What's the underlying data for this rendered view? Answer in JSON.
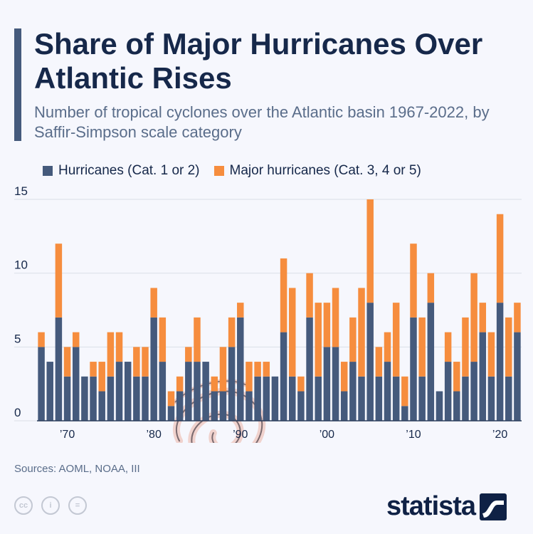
{
  "title": "Share of Major Hurricanes Over Atlantic Rises",
  "subtitle": "Number of tropical cyclones over the Atlantic basin 1967-2022, by Saffir-Simpson scale category",
  "source": "Sources: AOML, NOAA, III",
  "brand": "statista",
  "colors": {
    "hurricanes": "#455a7c",
    "major": "#f68d3e",
    "title": "#16284a",
    "accent": "#455a7c"
  },
  "chart_data": {
    "type": "bar",
    "stacked": true,
    "title": "Share of Major Hurricanes Over Atlantic Rises",
    "xlabel": "",
    "ylabel": "",
    "ylim": [
      0,
      15
    ],
    "yticks": [
      0,
      5,
      10,
      15
    ],
    "xtick_labels": [
      {
        "year": 1970,
        "label": "’70"
      },
      {
        "year": 1980,
        "label": "’80"
      },
      {
        "year": 1990,
        "label": "’90"
      },
      {
        "year": 2000,
        "label": "’00"
      },
      {
        "year": 2010,
        "label": "’10"
      },
      {
        "year": 2020,
        "label": "’20"
      }
    ],
    "categories": [
      1967,
      1968,
      1969,
      1970,
      1971,
      1972,
      1973,
      1974,
      1975,
      1976,
      1977,
      1978,
      1979,
      1980,
      1981,
      1982,
      1983,
      1984,
      1985,
      1986,
      1987,
      1988,
      1989,
      1990,
      1991,
      1992,
      1993,
      1994,
      1995,
      1996,
      1997,
      1998,
      1999,
      2000,
      2001,
      2002,
      2003,
      2004,
      2005,
      2006,
      2007,
      2008,
      2009,
      2010,
      2011,
      2012,
      2013,
      2014,
      2015,
      2016,
      2017,
      2018,
      2019,
      2020,
      2021,
      2022
    ],
    "series": [
      {
        "name": "Hurricanes (Cat. 1 or 2)",
        "values": [
          5,
          4,
          7,
          3,
          5,
          3,
          3,
          2,
          3,
          4,
          4,
          3,
          3,
          7,
          4,
          1,
          2,
          4,
          4,
          4,
          2,
          2,
          5,
          7,
          2,
          3,
          3,
          3,
          6,
          3,
          2,
          7,
          3,
          5,
          5,
          2,
          4,
          3,
          8,
          3,
          4,
          3,
          1,
          7,
          3,
          8,
          2,
          4,
          2,
          3,
          4,
          6,
          3,
          8,
          3,
          6
        ]
      },
      {
        "name": "Major hurricanes (Cat. 3, 4 or 5)",
        "values": [
          1,
          0,
          5,
          2,
          1,
          0,
          1,
          2,
          3,
          2,
          0,
          2,
          2,
          2,
          3,
          1,
          1,
          1,
          3,
          0,
          1,
          3,
          2,
          1,
          2,
          1,
          1,
          0,
          5,
          6,
          1,
          3,
          5,
          3,
          4,
          2,
          3,
          6,
          7,
          2,
          2,
          5,
          2,
          5,
          4,
          2,
          0,
          2,
          2,
          4,
          6,
          2,
          3,
          6,
          4,
          2
        ]
      }
    ]
  }
}
